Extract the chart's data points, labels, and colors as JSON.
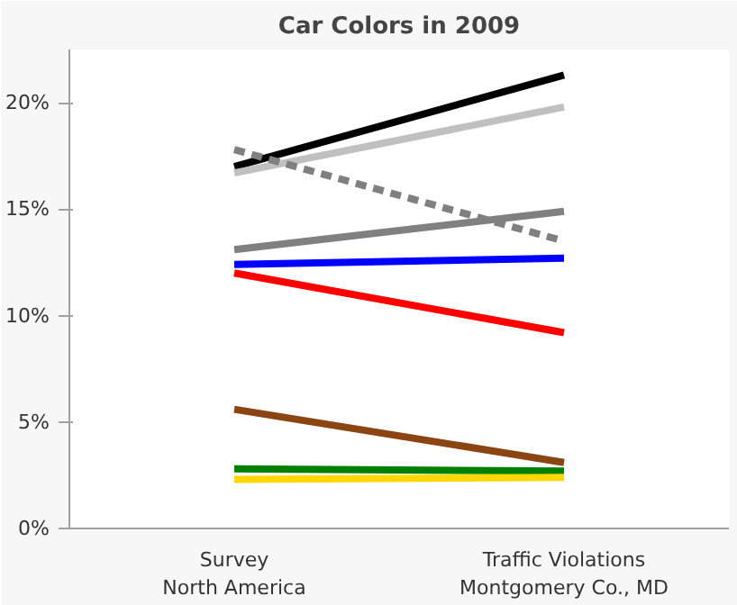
{
  "chart_data": {
    "type": "line",
    "title": "Car Colors in 2009",
    "categories": [
      "Survey\nNorth America",
      "Traffic Violations\nMontgomery Co., MD"
    ],
    "series": [
      {
        "color": "#000000",
        "values": [
          17.0,
          21.3
        ]
      },
      {
        "color": "#c0c0c0",
        "values": [
          16.7,
          19.8
        ]
      },
      {
        "color": "#808080",
        "values": [
          17.8,
          13.5
        ],
        "line_style": "dashed"
      },
      {
        "color": "#808080",
        "values": [
          13.1,
          14.9
        ]
      },
      {
        "color": "#0000ff",
        "values": [
          12.4,
          12.7
        ]
      },
      {
        "color": "#ff0000",
        "values": [
          12.0,
          9.2
        ]
      },
      {
        "color": "#8b4513",
        "values": [
          5.6,
          3.1
        ]
      },
      {
        "color": "#008000",
        "values": [
          2.8,
          2.7
        ]
      },
      {
        "color": "#ffd700",
        "values": [
          2.3,
          2.4
        ]
      }
    ],
    "ylim": [
      0,
      22.5
    ],
    "yticks": [
      {
        "value": 0,
        "label": "0%"
      },
      {
        "value": 5,
        "label": "5%"
      },
      {
        "value": 10,
        "label": "10%"
      },
      {
        "value": 15,
        "label": "15%"
      },
      {
        "value": 20,
        "label": "20%"
      }
    ],
    "grid": false,
    "marker": "none",
    "line_style": "solid"
  }
}
